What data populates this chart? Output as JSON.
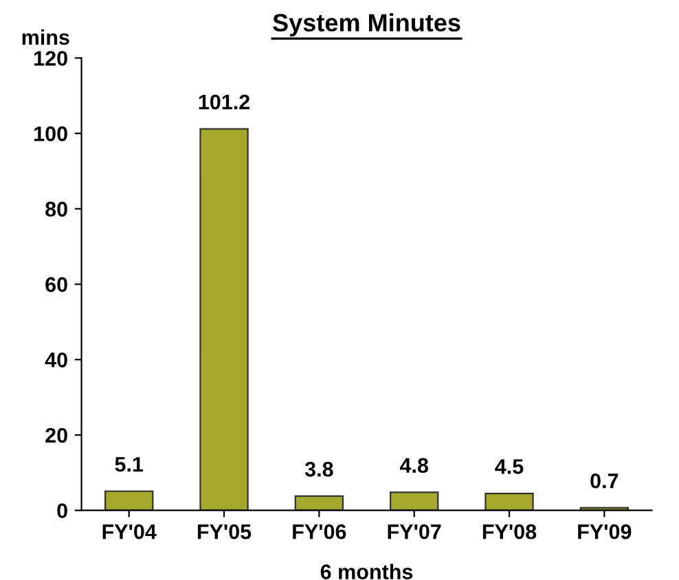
{
  "chart_data": {
    "type": "bar",
    "title": "System Minutes",
    "ylabel": "mins",
    "categories": [
      "FY'04",
      "FY'05",
      "FY'06",
      "FY'07",
      "FY'08",
      "FY'09"
    ],
    "values": [
      5.1,
      101.2,
      3.8,
      4.8,
      4.5,
      0.7
    ],
    "color": "#a4a82c",
    "ylim": [
      0,
      120
    ],
    "yticks": [
      0,
      20,
      40,
      60,
      80,
      100,
      120
    ],
    "grid": false,
    "data_labels": true,
    "annotations": [
      "6 months"
    ]
  }
}
